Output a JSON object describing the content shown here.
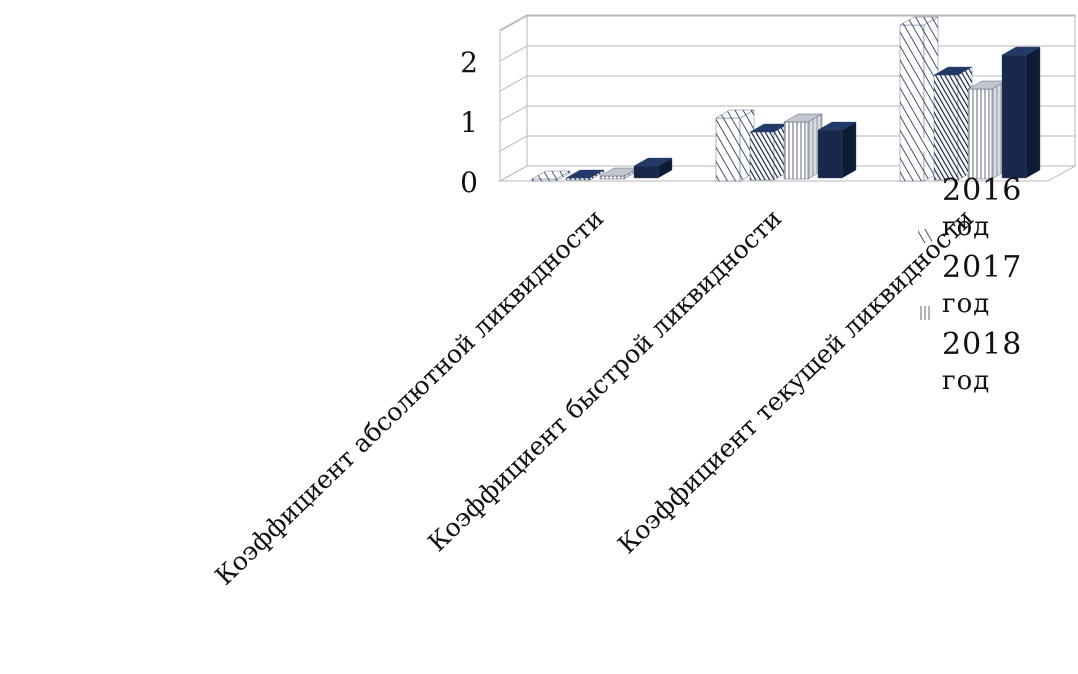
{
  "chart_data": {
    "type": "bar",
    "variant": "3d-clustered-column",
    "categories": [
      "Коэффициент абсолютной ликвидности",
      "Коэффициент быстрой ликвидности",
      "Коэффициент текущей ликвидности"
    ],
    "series": [
      {
        "name": "2016 год",
        "values": [
          0.02,
          1.05,
          2.6
        ],
        "pattern": "diagonal-white-navy"
      },
      {
        "name": "2017 год",
        "values": [
          0.03,
          0.8,
          1.75
        ],
        "pattern": "dense-diagonal-navy"
      },
      {
        "name": "2018 год",
        "values": [
          0.05,
          0.95,
          1.5
        ],
        "pattern": "vertical-gray"
      },
      {
        "name": "",
        "values": [
          0.2,
          0.8,
          2.05
        ],
        "pattern": "solid-navy"
      }
    ],
    "y_ticks": [
      "0",
      "1",
      "2"
    ],
    "ylim": [
      0,
      2.7
    ],
    "title": "",
    "xlabel": "",
    "ylabel": "",
    "grid": true,
    "legend_position": "right",
    "colors": {
      "navy": "#17284a",
      "navy_dark": "#0f1c36",
      "navy_mid": "#223a6a",
      "gray": "#c3c6cc",
      "grid": "#b7b7b7"
    }
  }
}
